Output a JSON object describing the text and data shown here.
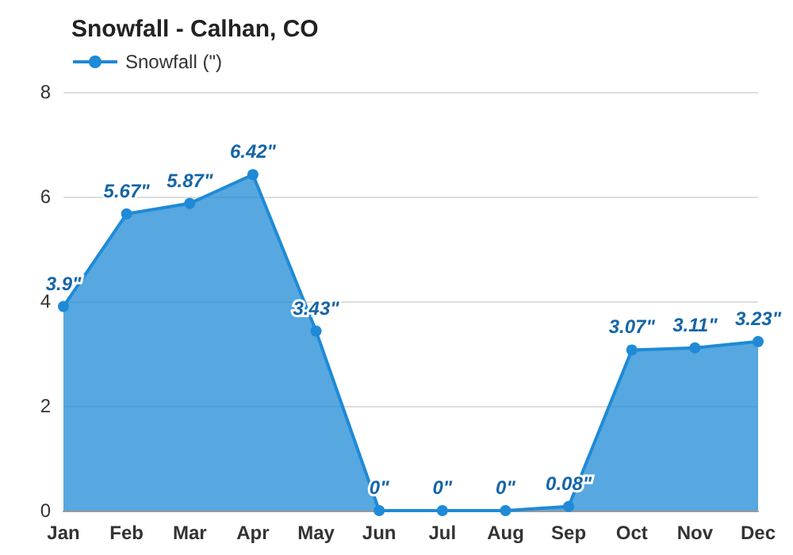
{
  "chart_data": {
    "type": "area",
    "title": "Snowfall - Calhan, CO",
    "categories": [
      "Jan",
      "Feb",
      "Mar",
      "Apr",
      "May",
      "Jun",
      "Jul",
      "Aug",
      "Sep",
      "Oct",
      "Nov",
      "Dec"
    ],
    "series": [
      {
        "name": "Snowfall (\")",
        "color": "#1f8ad6",
        "values": [
          3.9,
          5.67,
          5.87,
          6.42,
          3.43,
          0,
          0,
          0,
          0.08,
          3.07,
          3.11,
          3.23
        ],
        "value_labels": [
          "3.9\"",
          "5.67\"",
          "5.87\"",
          "6.42\"",
          "3.43\"",
          "0\"",
          "0\"",
          "0\"",
          "0.08\"",
          "3.07\"",
          "3.11\"",
          "3.23\""
        ]
      }
    ],
    "ylim": [
      0,
      8
    ],
    "yticks": [
      0,
      2,
      4,
      6,
      8
    ],
    "grid": "y",
    "legend": "top left",
    "marker": "circle"
  }
}
